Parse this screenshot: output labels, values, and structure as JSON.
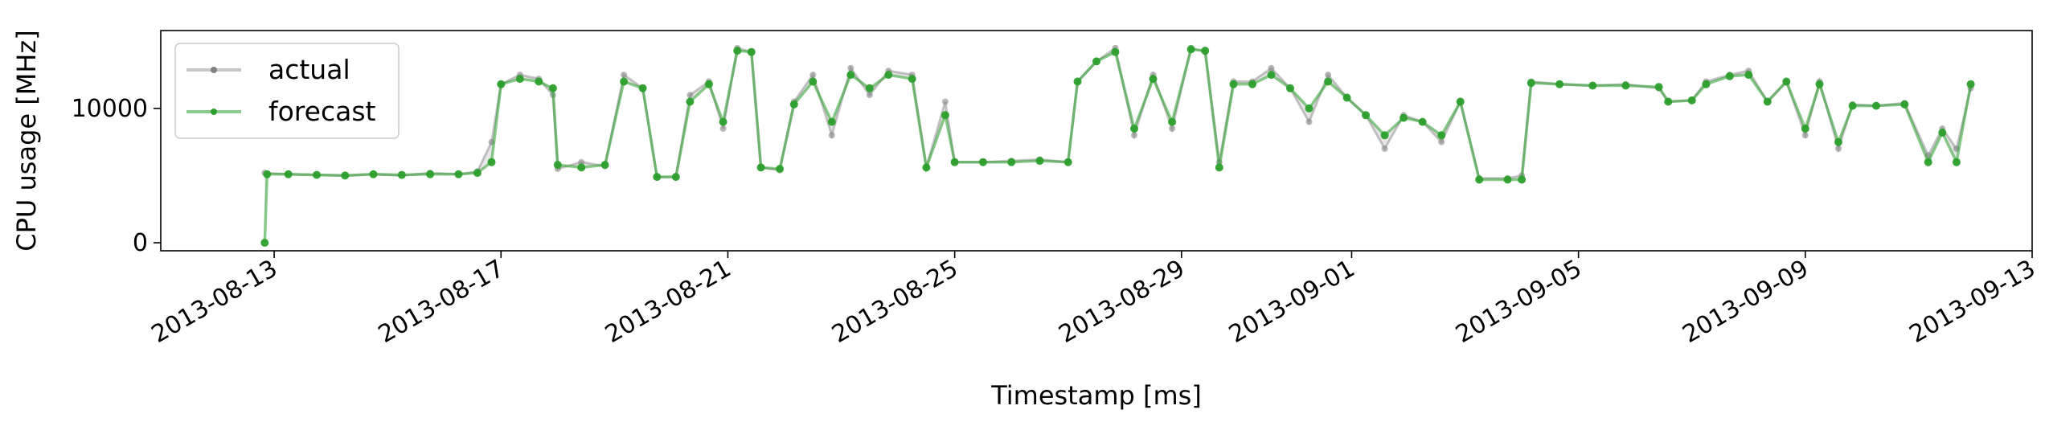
{
  "chart_data": {
    "type": "line",
    "title": "",
    "xlabel": "Timestamp [ms]",
    "ylabel": "CPU usage [MHz]",
    "x_range": [
      "2013-08-11",
      "2013-09-13"
    ],
    "ylim": [
      -600,
      15800
    ],
    "x_ticks": [
      "2013-08-13",
      "2013-08-17",
      "2013-08-21",
      "2013-08-25",
      "2013-08-29",
      "2013-09-01",
      "2013-09-05",
      "2013-09-09",
      "2013-09-13"
    ],
    "y_ticks": [
      0,
      10000
    ],
    "grid": false,
    "legend_position": "upper-left",
    "series": [
      {
        "name": "actual",
        "color": "#808080",
        "points": [
          [
            "2013-08-12T20:00",
            5200
          ],
          [
            "2013-08-13T06:00",
            5100
          ],
          [
            "2013-08-13T18:00",
            5050
          ],
          [
            "2013-08-14T06:00",
            5000
          ],
          [
            "2013-08-14T18:00",
            5100
          ],
          [
            "2013-08-15T06:00",
            5000
          ],
          [
            "2013-08-15T18:00",
            5200
          ],
          [
            "2013-08-16T06:00",
            5100
          ],
          [
            "2013-08-16T14:00",
            5300
          ],
          [
            "2013-08-16T20:00",
            7500
          ],
          [
            "2013-08-17T00:00",
            11800
          ],
          [
            "2013-08-17T08:00",
            12500
          ],
          [
            "2013-08-17T16:00",
            12200
          ],
          [
            "2013-08-17T22:00",
            11000
          ],
          [
            "2013-08-18T00:00",
            5500
          ],
          [
            "2013-08-18T10:00",
            6000
          ],
          [
            "2013-08-18T20:00",
            5700
          ],
          [
            "2013-08-19T04:00",
            12500
          ],
          [
            "2013-08-19T12:00",
            11500
          ],
          [
            "2013-08-19T18:00",
            4900
          ],
          [
            "2013-08-20T02:00",
            4900
          ],
          [
            "2013-08-20T08:00",
            11000
          ],
          [
            "2013-08-20T16:00",
            12000
          ],
          [
            "2013-08-20T22:00",
            8500
          ],
          [
            "2013-08-21T04:00",
            14500
          ],
          [
            "2013-08-21T10:00",
            14200
          ],
          [
            "2013-08-21T14:00",
            5600
          ],
          [
            "2013-08-21T22:00",
            5400
          ],
          [
            "2013-08-22T04:00",
            10500
          ],
          [
            "2013-08-22T12:00",
            12500
          ],
          [
            "2013-08-22T20:00",
            8000
          ],
          [
            "2013-08-23T04:00",
            13000
          ],
          [
            "2013-08-23T12:00",
            11000
          ],
          [
            "2013-08-23T20:00",
            12800
          ],
          [
            "2013-08-24T06:00",
            12500
          ],
          [
            "2013-08-24T12:00",
            5600
          ],
          [
            "2013-08-24T20:00",
            10500
          ],
          [
            "2013-08-25T00:00",
            6000
          ],
          [
            "2013-08-25T12:00",
            6000
          ],
          [
            "2013-08-26T00:00",
            6100
          ],
          [
            "2013-08-26T12:00",
            6200
          ],
          [
            "2013-08-27T00:00",
            6000
          ],
          [
            "2013-08-27T04:00",
            12000
          ],
          [
            "2013-08-27T12:00",
            13500
          ],
          [
            "2013-08-27T20:00",
            14500
          ],
          [
            "2013-08-28T04:00",
            8000
          ],
          [
            "2013-08-28T12:00",
            12500
          ],
          [
            "2013-08-28T20:00",
            8500
          ],
          [
            "2013-08-29T04:00",
            14500
          ],
          [
            "2013-08-29T10:00",
            14200
          ],
          [
            "2013-08-29T16:00",
            6000
          ],
          [
            "2013-08-29T22:00",
            12000
          ],
          [
            "2013-08-30T06:00",
            12000
          ],
          [
            "2013-08-30T14:00",
            13000
          ],
          [
            "2013-08-30T22:00",
            11500
          ],
          [
            "2013-08-31T06:00",
            9000
          ],
          [
            "2013-08-31T14:00",
            12500
          ],
          [
            "2013-08-31T22:00",
            10800
          ],
          [
            "2013-09-01T06:00",
            9500
          ],
          [
            "2013-09-01T14:00",
            7000
          ],
          [
            "2013-09-01T22:00",
            9500
          ],
          [
            "2013-09-02T06:00",
            9000
          ],
          [
            "2013-09-02T14:00",
            7500
          ],
          [
            "2013-09-02T22:00",
            10500
          ],
          [
            "2013-09-03T06:00",
            4800
          ],
          [
            "2013-09-03T18:00",
            4800
          ],
          [
            "2013-09-04T00:00",
            5000
          ],
          [
            "2013-09-04T04:00",
            12000
          ],
          [
            "2013-09-04T16:00",
            11800
          ],
          [
            "2013-09-05T06:00",
            11700
          ],
          [
            "2013-09-05T20:00",
            11800
          ],
          [
            "2013-09-06T10:00",
            11500
          ],
          [
            "2013-09-06T14:00",
            10500
          ],
          [
            "2013-09-07T00:00",
            10600
          ],
          [
            "2013-09-07T06:00",
            12000
          ],
          [
            "2013-09-07T16:00",
            12500
          ],
          [
            "2013-09-08T00:00",
            12800
          ],
          [
            "2013-09-08T08:00",
            10500
          ],
          [
            "2013-09-08T16:00",
            12000
          ],
          [
            "2013-09-09T00:00",
            8000
          ],
          [
            "2013-09-09T06:00",
            12000
          ],
          [
            "2013-09-09T14:00",
            7000
          ],
          [
            "2013-09-09T20:00",
            10300
          ],
          [
            "2013-09-10T06:00",
            10200
          ],
          [
            "2013-09-10T18:00",
            10400
          ],
          [
            "2013-09-11T04:00",
            6500
          ],
          [
            "2013-09-11T10:00",
            8500
          ],
          [
            "2013-09-11T16:00",
            7000
          ],
          [
            "2013-09-11T22:00",
            11500
          ]
        ]
      },
      {
        "name": "forecast",
        "color": "#2ca02c",
        "points": [
          [
            "2013-08-12T20:00",
            0
          ],
          [
            "2013-08-12T21:00",
            5100
          ],
          [
            "2013-08-13T06:00",
            5100
          ],
          [
            "2013-08-13T18:00",
            5050
          ],
          [
            "2013-08-14T06:00",
            5000
          ],
          [
            "2013-08-14T18:00",
            5100
          ],
          [
            "2013-08-15T06:00",
            5050
          ],
          [
            "2013-08-15T18:00",
            5100
          ],
          [
            "2013-08-16T06:00",
            5100
          ],
          [
            "2013-08-16T14:00",
            5200
          ],
          [
            "2013-08-16T20:00",
            6000
          ],
          [
            "2013-08-17T00:00",
            11800
          ],
          [
            "2013-08-17T08:00",
            12200
          ],
          [
            "2013-08-17T16:00",
            12000
          ],
          [
            "2013-08-17T22:00",
            11500
          ],
          [
            "2013-08-18T00:00",
            5800
          ],
          [
            "2013-08-18T10:00",
            5600
          ],
          [
            "2013-08-18T20:00",
            5800
          ],
          [
            "2013-08-19T04:00",
            12000
          ],
          [
            "2013-08-19T12:00",
            11500
          ],
          [
            "2013-08-19T18:00",
            4900
          ],
          [
            "2013-08-20T02:00",
            4900
          ],
          [
            "2013-08-20T08:00",
            10500
          ],
          [
            "2013-08-20T16:00",
            11800
          ],
          [
            "2013-08-20T22:00",
            9000
          ],
          [
            "2013-08-21T04:00",
            14300
          ],
          [
            "2013-08-21T10:00",
            14200
          ],
          [
            "2013-08-21T14:00",
            5600
          ],
          [
            "2013-08-21T22:00",
            5500
          ],
          [
            "2013-08-22T04:00",
            10300
          ],
          [
            "2013-08-22T12:00",
            12000
          ],
          [
            "2013-08-22T20:00",
            9000
          ],
          [
            "2013-08-23T04:00",
            12500
          ],
          [
            "2013-08-23T12:00",
            11500
          ],
          [
            "2013-08-23T20:00",
            12500
          ],
          [
            "2013-08-24T06:00",
            12200
          ],
          [
            "2013-08-24T12:00",
            5600
          ],
          [
            "2013-08-24T20:00",
            9500
          ],
          [
            "2013-08-25T00:00",
            6000
          ],
          [
            "2013-08-25T12:00",
            6000
          ],
          [
            "2013-08-26T00:00",
            6000
          ],
          [
            "2013-08-26T12:00",
            6100
          ],
          [
            "2013-08-27T00:00",
            6000
          ],
          [
            "2013-08-27T04:00",
            12000
          ],
          [
            "2013-08-27T12:00",
            13500
          ],
          [
            "2013-08-27T20:00",
            14200
          ],
          [
            "2013-08-28T04:00",
            8500
          ],
          [
            "2013-08-28T12:00",
            12200
          ],
          [
            "2013-08-28T20:00",
            9000
          ],
          [
            "2013-08-29T04:00",
            14400
          ],
          [
            "2013-08-29T10:00",
            14300
          ],
          [
            "2013-08-29T16:00",
            5600
          ],
          [
            "2013-08-29T22:00",
            11800
          ],
          [
            "2013-08-30T06:00",
            11800
          ],
          [
            "2013-08-30T14:00",
            12500
          ],
          [
            "2013-08-30T22:00",
            11500
          ],
          [
            "2013-08-31T06:00",
            10000
          ],
          [
            "2013-08-31T14:00",
            12000
          ],
          [
            "2013-08-31T22:00",
            10800
          ],
          [
            "2013-09-01T06:00",
            9500
          ],
          [
            "2013-09-01T14:00",
            8000
          ],
          [
            "2013-09-01T22:00",
            9300
          ],
          [
            "2013-09-02T06:00",
            9000
          ],
          [
            "2013-09-02T14:00",
            8000
          ],
          [
            "2013-09-02T22:00",
            10500
          ],
          [
            "2013-09-03T06:00",
            4700
          ],
          [
            "2013-09-03T18:00",
            4700
          ],
          [
            "2013-09-04T00:00",
            4700
          ],
          [
            "2013-09-04T04:00",
            11900
          ],
          [
            "2013-09-04T16:00",
            11800
          ],
          [
            "2013-09-05T06:00",
            11700
          ],
          [
            "2013-09-05T20:00",
            11700
          ],
          [
            "2013-09-06T10:00",
            11600
          ],
          [
            "2013-09-06T14:00",
            10500
          ],
          [
            "2013-09-07T00:00",
            10600
          ],
          [
            "2013-09-07T06:00",
            11800
          ],
          [
            "2013-09-07T16:00",
            12400
          ],
          [
            "2013-09-08T00:00",
            12500
          ],
          [
            "2013-09-08T08:00",
            10500
          ],
          [
            "2013-09-08T16:00",
            12000
          ],
          [
            "2013-09-09T00:00",
            8500
          ],
          [
            "2013-09-09T06:00",
            11800
          ],
          [
            "2013-09-09T14:00",
            7500
          ],
          [
            "2013-09-09T20:00",
            10200
          ],
          [
            "2013-09-10T06:00",
            10200
          ],
          [
            "2013-09-10T18:00",
            10300
          ],
          [
            "2013-09-11T04:00",
            6000
          ],
          [
            "2013-09-11T10:00",
            8200
          ],
          [
            "2013-09-11T16:00",
            6000
          ],
          [
            "2013-09-11T22:00",
            11800
          ]
        ]
      }
    ]
  }
}
